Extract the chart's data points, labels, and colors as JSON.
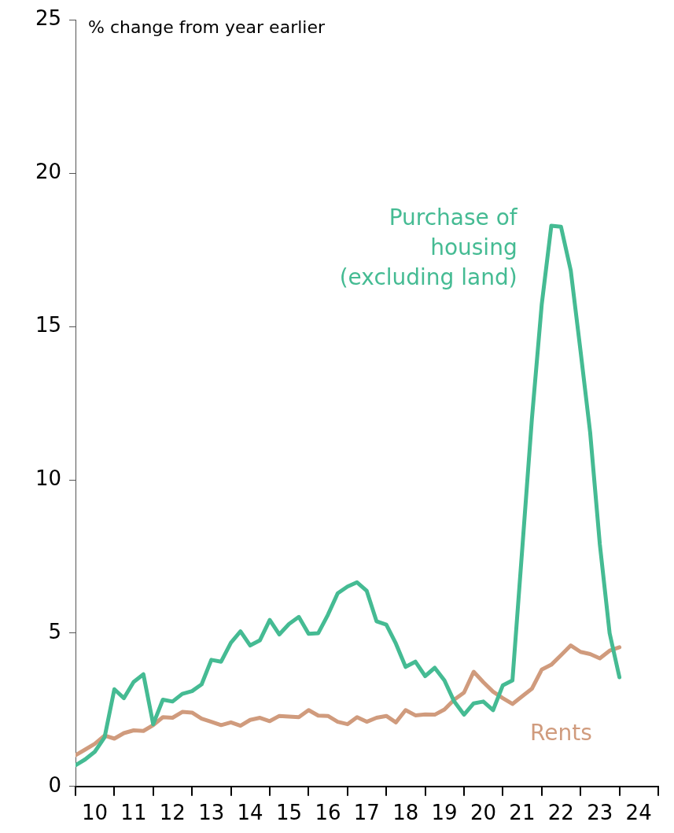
{
  "chart_data": {
    "type": "line",
    "ylabel": "% change from year earlier",
    "x": [
      "2010-01",
      "2010-04",
      "2010-07",
      "2010-10",
      "2011-01",
      "2011-04",
      "2011-07",
      "2011-10",
      "2012-01",
      "2012-04",
      "2012-07",
      "2012-10",
      "2013-01",
      "2013-04",
      "2013-07",
      "2013-10",
      "2014-01",
      "2014-04",
      "2014-07",
      "2014-10",
      "2015-01",
      "2015-04",
      "2015-07",
      "2015-10",
      "2016-01",
      "2016-04",
      "2016-07",
      "2016-10",
      "2017-01",
      "2017-04",
      "2017-07",
      "2017-10",
      "2018-01",
      "2018-04",
      "2018-07",
      "2018-10",
      "2019-01",
      "2019-04",
      "2019-07",
      "2019-10",
      "2020-01",
      "2020-04",
      "2020-07",
      "2020-10",
      "2021-01",
      "2021-04",
      "2021-07",
      "2021-10",
      "2022-01",
      "2022-04",
      "2022-07",
      "2022-10",
      "2023-01",
      "2023-04",
      "2023-07",
      "2023-10",
      "2024-01"
    ],
    "series": [
      {
        "name": "Purchase of housing (excluding land)",
        "color": "#45bb93",
        "values": [
          0.69,
          0.88,
          1.13,
          1.6,
          3.17,
          2.88,
          3.41,
          3.66,
          2.03,
          2.83,
          2.77,
          3.02,
          3.11,
          3.33,
          4.13,
          4.07,
          4.69,
          5.06,
          4.6,
          4.77,
          5.43,
          4.96,
          5.3,
          5.53,
          4.98,
          5.0,
          5.6,
          6.3,
          6.52,
          6.66,
          6.38,
          5.39,
          5.28,
          4.66,
          3.9,
          4.07,
          3.6,
          3.87,
          3.46,
          2.77,
          2.34,
          2.71,
          2.77,
          2.49,
          3.3,
          3.46,
          7.7,
          12.0,
          15.72,
          18.29,
          18.26,
          16.83,
          14.2,
          11.55,
          7.9,
          5.0,
          3.56
        ]
      },
      {
        "name": "Rents",
        "color": "#d09b7d",
        "values": [
          1.02,
          1.2,
          1.39,
          1.66,
          1.56,
          1.74,
          1.83,
          1.81,
          2.0,
          2.26,
          2.24,
          2.43,
          2.41,
          2.21,
          2.11,
          2.0,
          2.09,
          1.98,
          2.17,
          2.24,
          2.13,
          2.3,
          2.28,
          2.26,
          2.49,
          2.31,
          2.3,
          2.11,
          2.03,
          2.26,
          2.11,
          2.24,
          2.3,
          2.09,
          2.49,
          2.32,
          2.35,
          2.34,
          2.51,
          2.83,
          3.06,
          3.74,
          3.4,
          3.09,
          2.88,
          2.69,
          2.94,
          3.19,
          3.81,
          3.97,
          4.28,
          4.6,
          4.39,
          4.32,
          4.18,
          4.43,
          4.54
        ]
      }
    ],
    "xlim": [
      "2010",
      "2025"
    ],
    "xticks": [
      {
        "value": "2010",
        "label": null
      },
      {
        "value": "2010-07",
        "label": "10"
      },
      {
        "value": "2011",
        "label": null
      },
      {
        "value": "2011-07",
        "label": "11"
      },
      {
        "value": "2012",
        "label": null
      },
      {
        "value": "2012-07",
        "label": "12"
      },
      {
        "value": "2013",
        "label": null
      },
      {
        "value": "2013-07",
        "label": "13"
      },
      {
        "value": "2014",
        "label": null
      },
      {
        "value": "2014-07",
        "label": "14"
      },
      {
        "value": "2015",
        "label": null
      },
      {
        "value": "2015-07",
        "label": "15"
      },
      {
        "value": "2016",
        "label": null
      },
      {
        "value": "2016-07",
        "label": "16"
      },
      {
        "value": "2017",
        "label": null
      },
      {
        "value": "2017-07",
        "label": "17"
      },
      {
        "value": "2018",
        "label": null
      },
      {
        "value": "2018-07",
        "label": "18"
      },
      {
        "value": "2019",
        "label": null
      },
      {
        "value": "2019-07",
        "label": "19"
      },
      {
        "value": "2020",
        "label": null
      },
      {
        "value": "2020-07",
        "label": "20"
      },
      {
        "value": "2021",
        "label": null
      },
      {
        "value": "2021-07",
        "label": "21"
      },
      {
        "value": "2022",
        "label": null
      },
      {
        "value": "2022-07",
        "label": "22"
      },
      {
        "value": "2023",
        "label": null
      },
      {
        "value": "2023-07",
        "label": "23"
      },
      {
        "value": "2024",
        "label": null
      },
      {
        "value": "2024-07",
        "label": "24"
      },
      {
        "value": "2025",
        "label": null
      }
    ],
    "ylim": [
      0,
      25
    ],
    "yticks": [
      0,
      5,
      10,
      15,
      20,
      25
    ],
    "grid": false,
    "legend": false,
    "marker": "none",
    "line_style": "solid"
  }
}
